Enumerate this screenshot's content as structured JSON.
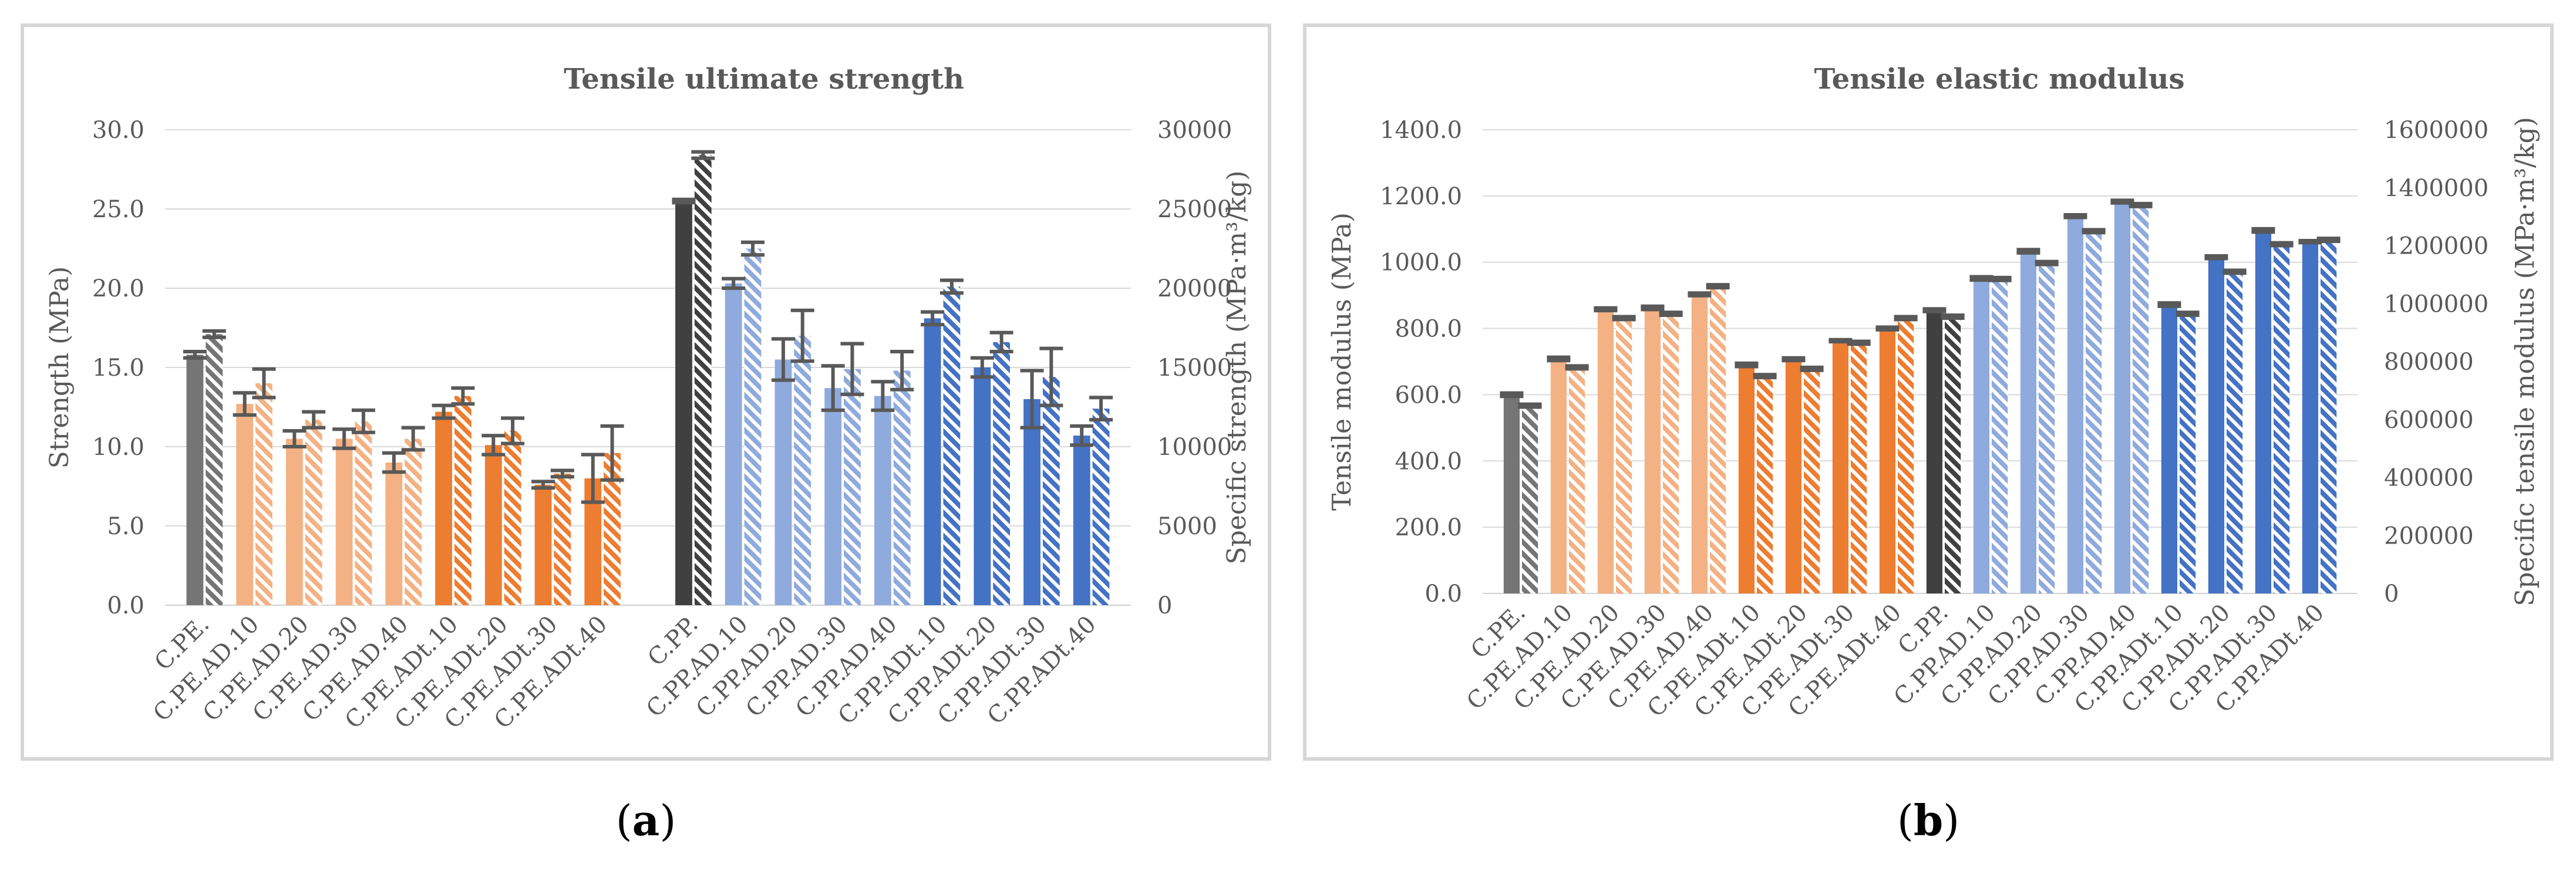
{
  "captions": {
    "a_open": "(",
    "a_letter": "a",
    "a_close": ")",
    "b_open": "(",
    "b_letter": "b",
    "b_close": ")"
  },
  "colors": {
    "gray": "#757575",
    "gray_dark": "#404040",
    "orange_light": "#f4b183",
    "orange": "#ed7d31",
    "blue_light": "#8faadc",
    "blue": "#4472c4",
    "error_bar": "#595959",
    "grid": "#d9d9d9"
  },
  "chart_data": [
    {
      "type": "bar",
      "title": "Tensile ultimate strength",
      "ylabel": "Strength (MPa)",
      "y2label": "Specific strength (MPa·m³/kg)",
      "ylim": [
        0,
        30
      ],
      "y2lim": [
        0,
        30000
      ],
      "yticks": [
        "0.0",
        "5.0",
        "10.0",
        "15.0",
        "20.0",
        "25.0",
        "30.0"
      ],
      "y2ticks": [
        "0",
        "5000",
        "10000",
        "15000",
        "20000",
        "25000",
        "30000"
      ],
      "categories": [
        "C.PE.",
        "C.PE.AD.10",
        "C.PE.AD.20",
        "C.PE.AD.30",
        "C.PE.AD.40",
        "C.PE.ADt.10",
        "C.PE.ADt.20",
        "C.PE.ADt.30",
        "C.PE.ADt.40",
        "C.PP.",
        "C.PP.AD.10",
        "C.PP.AD.20",
        "C.PP.AD.30",
        "C.PP.AD.40",
        "C.PP.ADt.10",
        "C.PP.ADt.20",
        "C.PP.ADt.30",
        "C.PP.ADt.40"
      ],
      "colorKeys": [
        "gray",
        "orange_light",
        "orange_light",
        "orange_light",
        "orange_light",
        "orange",
        "orange",
        "orange",
        "orange",
        "gray_dark",
        "blue_light",
        "blue_light",
        "blue_light",
        "blue_light",
        "blue",
        "blue",
        "blue",
        "blue"
      ],
      "gaps_after": [
        8
      ],
      "series": [
        {
          "name": "Strength",
          "axis": "left",
          "pattern": "solid",
          "values": [
            15.8,
            12.7,
            10.5,
            10.5,
            9.0,
            12.2,
            10.1,
            7.6,
            8.0,
            25.5,
            20.3,
            15.5,
            13.7,
            13.2,
            18.1,
            15.0,
            13.0,
            10.7
          ],
          "errors": [
            0.2,
            0.7,
            0.5,
            0.6,
            0.6,
            0.4,
            0.6,
            0.2,
            1.5,
            0.1,
            0.3,
            1.3,
            1.4,
            0.9,
            0.4,
            0.6,
            1.8,
            0.6
          ]
        },
        {
          "name": "Specific strength",
          "axis": "right",
          "pattern": "hatched",
          "values": [
            17100,
            14000,
            11700,
            11600,
            10500,
            13200,
            11000,
            8300,
            9600,
            28400,
            22500,
            17000,
            14900,
            14800,
            20100,
            16600,
            14400,
            12400
          ],
          "errors": [
            200,
            900,
            500,
            700,
            700,
            500,
            800,
            200,
            1700,
            200,
            400,
            1600,
            1600,
            1200,
            400,
            600,
            1800,
            700
          ]
        }
      ]
    },
    {
      "type": "bar",
      "title": "Tensile elastic modulus",
      "ylabel": "Tensile modulus (MPa)",
      "y2label": "Specific tensile modulus (MPa·m³/kg)",
      "ylim": [
        0,
        1400
      ],
      "y2lim": [
        0,
        1600000
      ],
      "yticks": [
        "0.0",
        "200.0",
        "400.0",
        "600.0",
        "800.0",
        "1000.0",
        "1200.0",
        "1400.0"
      ],
      "y2ticks": [
        "0",
        "200000",
        "400000",
        "600000",
        "800000",
        "1000000",
        "1200000",
        "1400000",
        "1600000"
      ],
      "categories": [
        "C.PE.",
        "C.PE.AD.10",
        "C.PE.AD.20",
        "C.PE.AD.30",
        "C.PE.AD.40",
        "C.PE.ADt.10",
        "C.PE.ADt.20",
        "C.PE.ADt.30",
        "C.PE.ADt.40",
        "C.PP.",
        "C.PP.AD.10",
        "C.PP.AD.20",
        "C.PP.AD.30",
        "C.PP.AD.40",
        "C.PP.ADt.10",
        "C.PP.ADt.20",
        "C.PP.ADt.30",
        "C.PP.ADt.40"
      ],
      "colorKeys": [
        "gray",
        "orange_light",
        "orange_light",
        "orange_light",
        "orange_light",
        "orange",
        "orange",
        "orange",
        "orange",
        "gray_dark",
        "blue_light",
        "blue_light",
        "blue_light",
        "blue_light",
        "blue",
        "blue",
        "blue",
        "blue"
      ],
      "gaps_after": [],
      "series": [
        {
          "name": "Tensile modulus",
          "axis": "left",
          "pattern": "solid",
          "values": [
            600,
            708,
            858,
            862,
            903,
            690,
            707,
            763,
            800,
            855,
            951,
            1033,
            1139,
            1183,
            872,
            1015,
            1096,
            1062
          ],
          "errors": [
            5,
            5,
            4,
            5,
            4,
            5,
            4,
            3,
            4,
            4,
            5,
            5,
            4,
            4,
            5,
            4,
            5,
            3
          ]
        },
        {
          "name": "Specific tensile modulus",
          "axis": "right",
          "pattern": "hatched",
          "values": [
            648000,
            780000,
            950000,
            965000,
            1060000,
            750000,
            775000,
            865000,
            950000,
            955000,
            1085000,
            1140000,
            1250000,
            1340000,
            965000,
            1110000,
            1205000,
            1220000
          ],
          "errors": [
            5000,
            5000,
            5000,
            5000,
            5000,
            5000,
            5000,
            5000,
            5000,
            5000,
            5000,
            5000,
            5000,
            5000,
            5000,
            5000,
            5000,
            5000
          ]
        }
      ]
    }
  ]
}
